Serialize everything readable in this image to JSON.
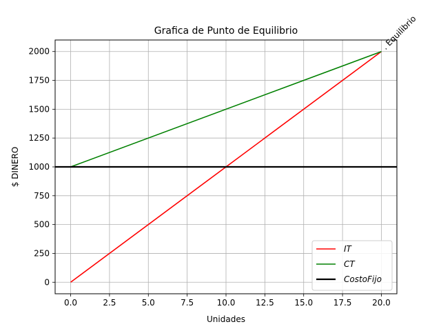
{
  "chart_data": {
    "type": "line",
    "title": "Grafica de Punto de Equilibrio",
    "xlabel": "Unidades",
    "ylabel": "$ DINERO",
    "xlim": [
      -1,
      21
    ],
    "ylim": [
      -100,
      2100
    ],
    "xticks": [
      0.0,
      2.5,
      5.0,
      7.5,
      10.0,
      12.5,
      15.0,
      17.5,
      20.0
    ],
    "xtick_labels": [
      "0.0",
      "2.5",
      "5.0",
      "7.5",
      "10.0",
      "12.5",
      "15.0",
      "17.5",
      "20.0"
    ],
    "yticks": [
      0,
      250,
      500,
      750,
      1000,
      1250,
      1500,
      1750,
      2000
    ],
    "ytick_labels": [
      "0",
      "250",
      "500",
      "750",
      "1000",
      "1250",
      "1500",
      "1750",
      "2000"
    ],
    "grid": true,
    "legend_position": "lower-right",
    "series": [
      {
        "name": "IT",
        "color": "#ff0000",
        "x": [
          0,
          20
        ],
        "y": [
          0,
          2000
        ]
      },
      {
        "name": "CT",
        "color": "#008000",
        "x": [
          0,
          20
        ],
        "y": [
          1000,
          2000
        ]
      },
      {
        "name": "CostoFijo",
        "color": "#000000",
        "kind": "hline",
        "y": 1000
      }
    ],
    "annotations": [
      {
        "text": ". Equilibrio",
        "x": 20,
        "y": 2000,
        "rotation": 45
      }
    ]
  }
}
